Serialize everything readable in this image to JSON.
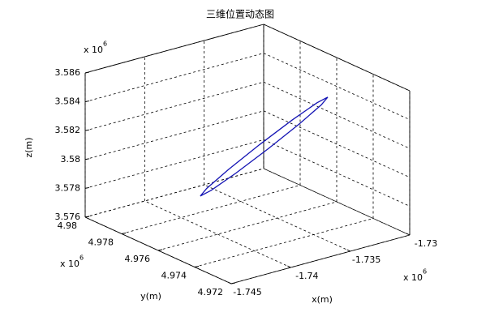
{
  "chart_data": {
    "type": "line3d",
    "title": "三维位置动态图",
    "xlabel": "x(m)",
    "ylabel": "y(m)",
    "zlabel": "z(m)",
    "x_multiplier": {
      "base": "x 10",
      "power": "6"
    },
    "y_multiplier": {
      "base": "x 10",
      "power": "6"
    },
    "z_multiplier": {
      "base": "x 10",
      "power": "6"
    },
    "xlim": [
      -1.745,
      -1.73
    ],
    "xticks": [
      -1.745,
      -1.74,
      -1.735,
      -1.73
    ],
    "ylim": [
      4.972,
      4.98
    ],
    "yticks": [
      4.972,
      4.974,
      4.976,
      4.978,
      4.98
    ],
    "zlim": [
      3.576,
      3.586
    ],
    "zticks": [
      3.576,
      3.578,
      3.58,
      3.582,
      3.584,
      3.586
    ],
    "grid": true,
    "series": [
      {
        "color": "#1414b4",
        "x": [
          -1.73075,
          -1.73147,
          -1.73343,
          -1.73611,
          -1.73878,
          -1.74074,
          -1.74146,
          -1.74074,
          -1.73878,
          -1.73611,
          -1.73343,
          -1.73147,
          -1.73075
        ],
        "y": [
          4.976,
          4.97612,
          4.97621,
          4.97624,
          4.97621,
          4.97612,
          4.976,
          4.97588,
          4.97579,
          4.97576,
          4.97579,
          4.97588,
          4.976
        ],
        "z": [
          3.583425,
          3.583127,
          3.582313,
          3.5812,
          3.580088,
          3.579273,
          3.578975,
          3.579273,
          3.580088,
          3.5812,
          3.582313,
          3.583127,
          3.583425
        ]
      }
    ]
  }
}
